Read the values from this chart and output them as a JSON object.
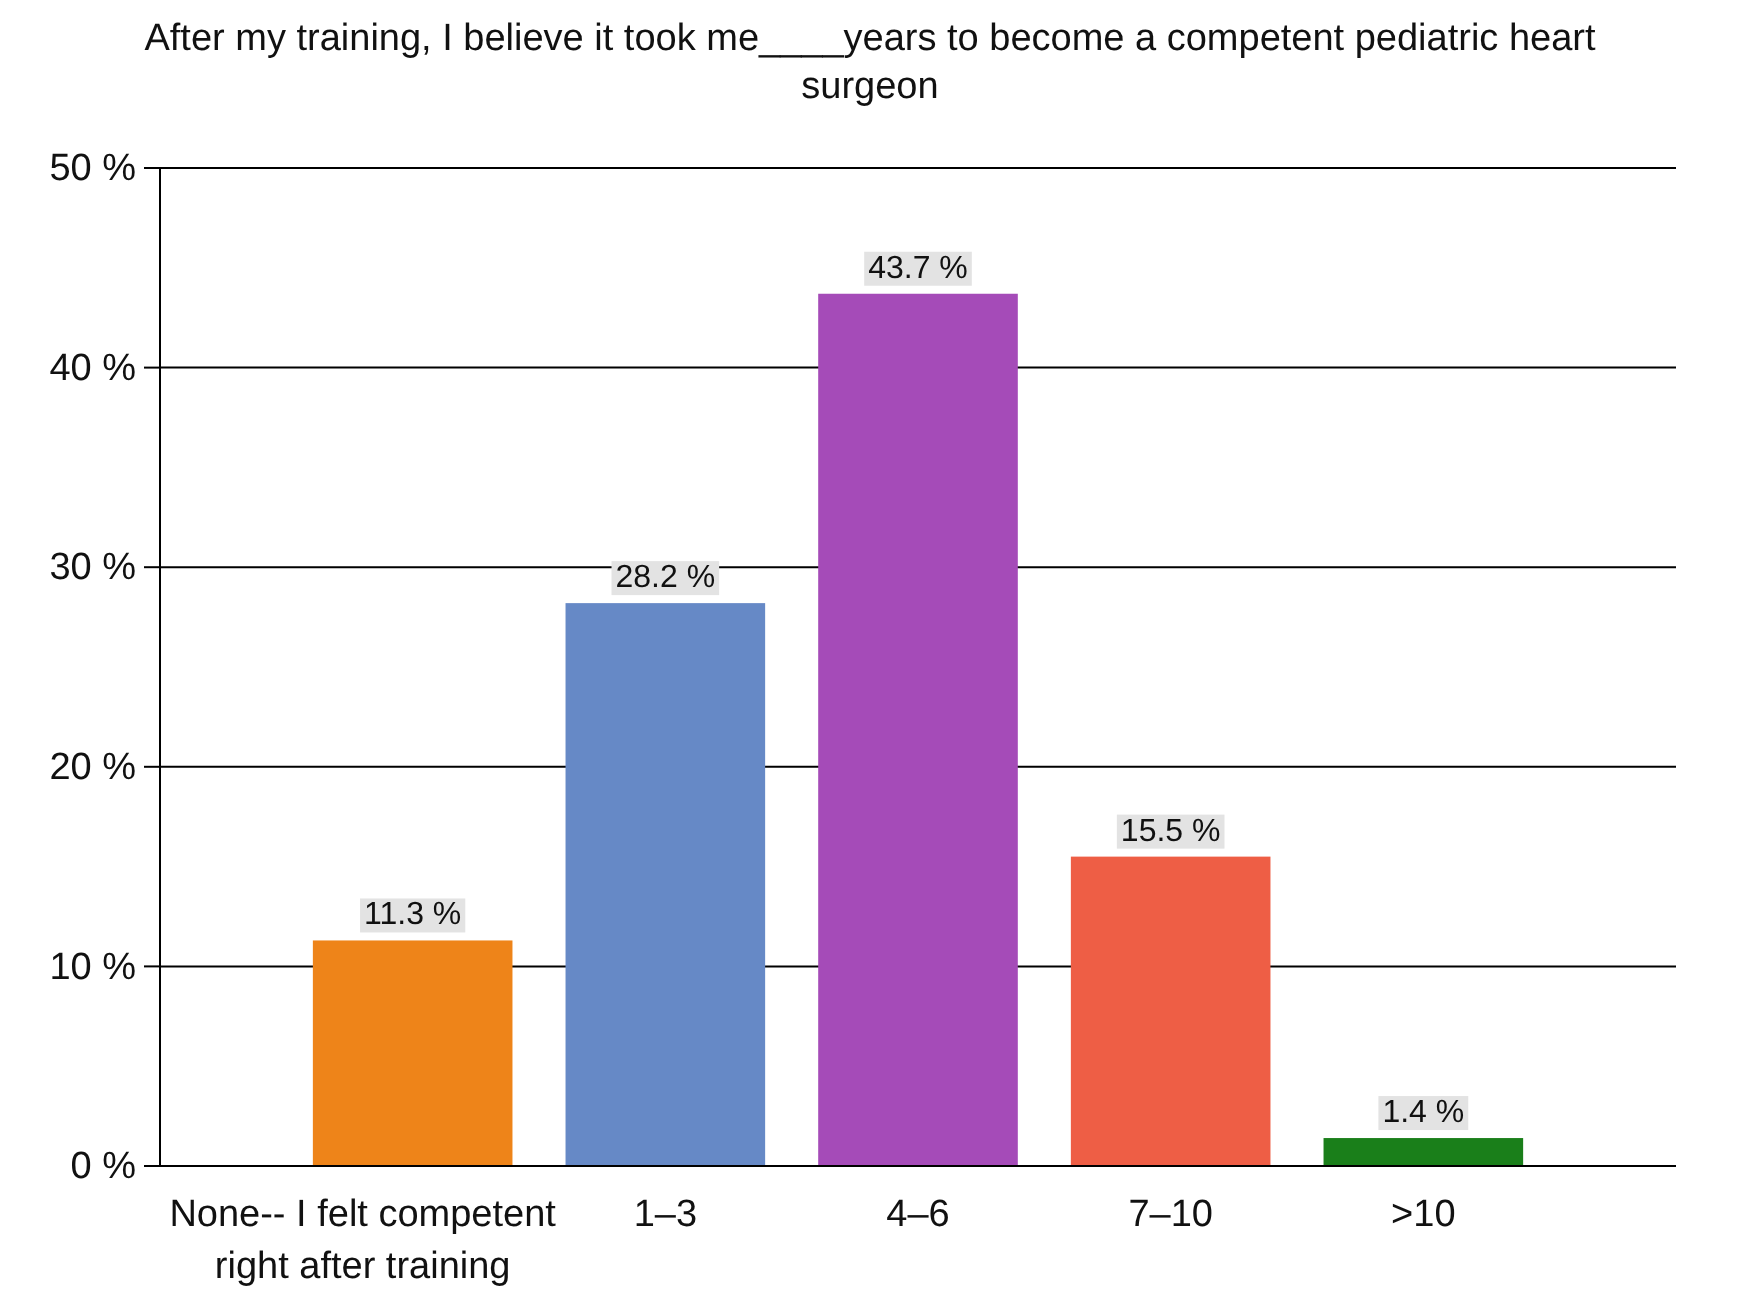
{
  "chart_data": {
    "type": "bar",
    "title": "After my training, I believe it took me____years to become a competent pediatric heart surgeon",
    "categories": [
      "None-- I felt competent right after training",
      "1–3",
      "4–6",
      "7–10",
      ">10"
    ],
    "values": [
      11.3,
      28.2,
      43.7,
      15.5,
      1.4
    ],
    "colors": [
      "#ee8419",
      "#6689c6",
      "#a54bb8",
      "#ee5e45",
      "#1a7f1a"
    ],
    "value_labels": [
      "11.3 %",
      "28.2 %",
      "43.7 %",
      "15.5 %",
      "1.4 %"
    ],
    "ylim": [
      0,
      50
    ],
    "yticks": [
      {
        "value": 0,
        "label": "0 %"
      },
      {
        "value": 10,
        "label": "10 %"
      },
      {
        "value": 20,
        "label": "20 %"
      },
      {
        "value": 30,
        "label": "30 %"
      },
      {
        "value": 40,
        "label": "40 %"
      },
      {
        "value": 50,
        "label": "50 %"
      }
    ],
    "grid": "y"
  }
}
